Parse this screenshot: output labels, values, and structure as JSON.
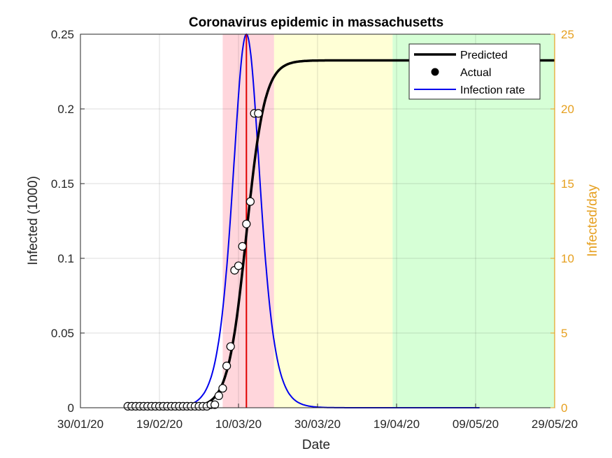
{
  "chart_data": {
    "type": "line",
    "title": "Coronavirus epidemic in massachusetts",
    "xlabel": "Date",
    "ylabel_left": "Infected (1000)",
    "ylabel_right": "Infected/day",
    "x_ticks": [
      "30/01/20",
      "19/02/20",
      "10/03/20",
      "30/03/20",
      "19/04/20",
      "09/05/20",
      "29/05/20"
    ],
    "xlim": [
      "2020-01-30",
      "2020-05-29"
    ],
    "ylim_left": [
      0,
      0.25
    ],
    "y_ticks_left": [
      "0",
      "0.05",
      "0.1",
      "0.15",
      "0.2",
      "0.25"
    ],
    "ylim_right": [
      0,
      25
    ],
    "y_ticks_right": [
      "0",
      "5",
      "10",
      "15",
      "20",
      "25"
    ],
    "grid": true,
    "legend_position": "top-right",
    "legend": [
      "Predicted",
      "Actual",
      "Infection rate"
    ],
    "colors": {
      "predicted": "#000000",
      "actual_marker": "#ffffff",
      "infection_rate": "#0000ee",
      "peak_line": "#e00000",
      "right_axis": "#e6a020",
      "band_red": "#ffd6dc",
      "band_yellow": "#ffffd6",
      "band_green": "#d6ffd6"
    },
    "phase_bands": [
      {
        "start": "2020-03-06",
        "end": "2020-03-19",
        "color": "#ffd6dc"
      },
      {
        "start": "2020-03-19",
        "end": "2020-04-18",
        "color": "#ffffd6"
      },
      {
        "start": "2020-04-18",
        "end": "2020-05-29",
        "color": "#d6ffd6"
      }
    ],
    "peak_date": "2020-03-12",
    "predicted": {
      "name": "Predicted",
      "K": 0.2325,
      "midpoint": "2020-03-12",
      "growth_rate_per_day": 0.43
    },
    "infection_rate": {
      "name": "Infection rate",
      "start": "2020-02-11",
      "end": "2020-05-10",
      "peak": 25
    },
    "actual": {
      "name": "Actual",
      "dates": [
        "2020-02-11",
        "2020-02-12",
        "2020-02-13",
        "2020-02-14",
        "2020-02-15",
        "2020-02-16",
        "2020-02-17",
        "2020-02-18",
        "2020-02-19",
        "2020-02-20",
        "2020-02-21",
        "2020-02-22",
        "2020-02-23",
        "2020-02-24",
        "2020-02-25",
        "2020-02-26",
        "2020-02-27",
        "2020-02-28",
        "2020-02-29",
        "2020-03-01",
        "2020-03-02",
        "2020-03-03",
        "2020-03-04",
        "2020-03-05",
        "2020-03-06",
        "2020-03-07",
        "2020-03-08",
        "2020-03-09",
        "2020-03-10",
        "2020-03-11",
        "2020-03-12",
        "2020-03-13",
        "2020-03-14",
        "2020-03-15"
      ],
      "values": [
        0.001,
        0.001,
        0.001,
        0.001,
        0.001,
        0.001,
        0.001,
        0.001,
        0.001,
        0.001,
        0.001,
        0.001,
        0.001,
        0.001,
        0.001,
        0.001,
        0.001,
        0.001,
        0.001,
        0.001,
        0.001,
        0.002,
        0.002,
        0.008,
        0.013,
        0.028,
        0.041,
        0.092,
        0.095,
        0.108,
        0.123,
        0.138,
        0.197,
        0.197
      ]
    }
  }
}
